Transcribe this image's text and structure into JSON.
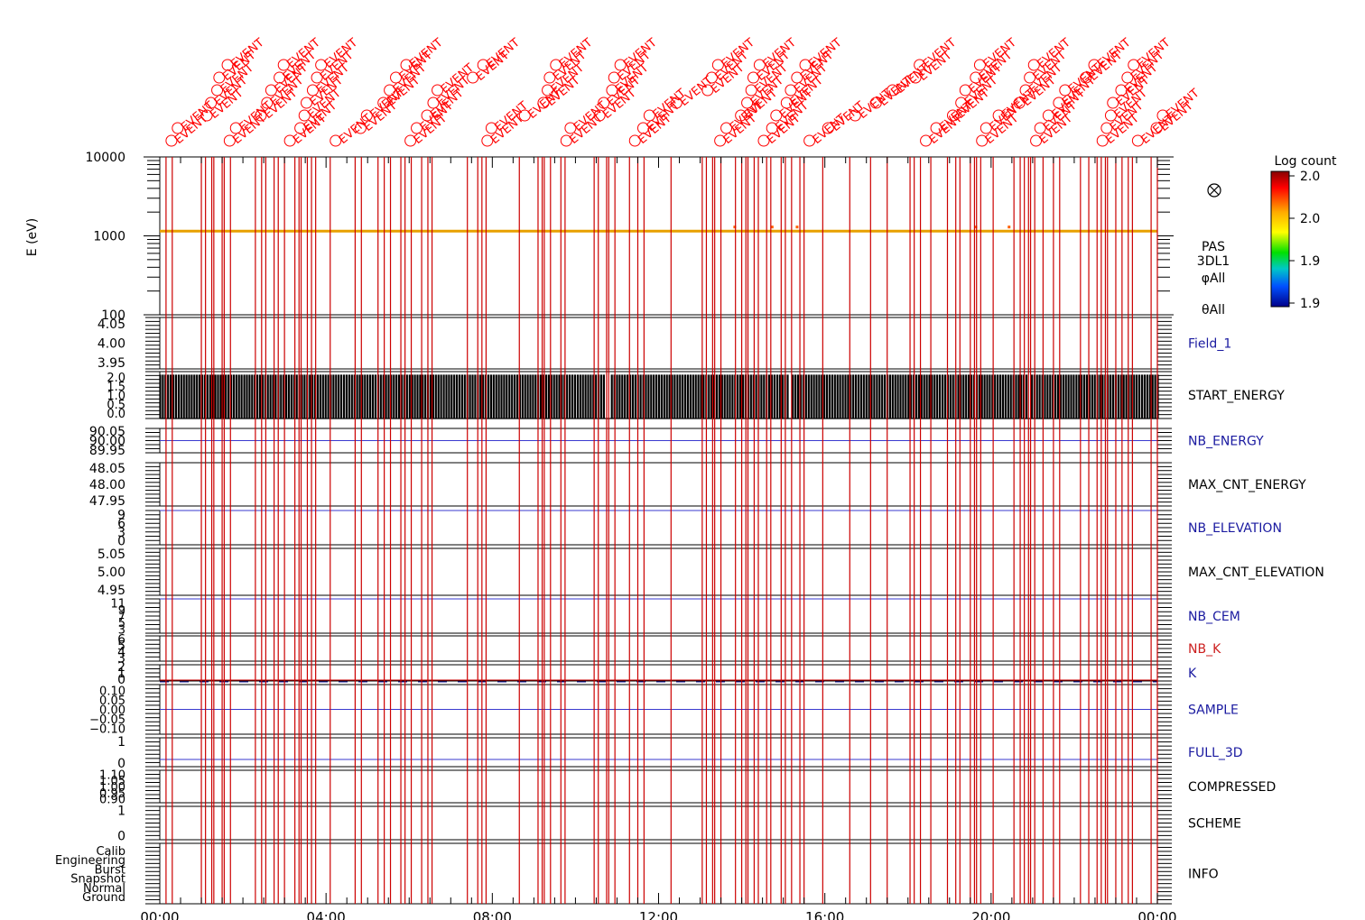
{
  "chart_data": {
    "type": "line",
    "title": "",
    "x_axis": {
      "tick_labels": [
        "00:00",
        "04:00",
        "08:00",
        "12:00",
        "16:00",
        "20:00",
        "00:00"
      ],
      "range_hours": [
        0,
        24
      ]
    },
    "event_annotation": {
      "marker_text": "EVENT",
      "marker_color": "#ff0000",
      "line_color": "#cc0000",
      "event_times_hours": [
        0.15,
        0.3,
        1.0,
        1.1,
        1.25,
        1.3,
        1.5,
        1.55,
        1.7,
        2.3,
        2.45,
        2.55,
        2.75,
        2.85,
        3.0,
        3.25,
        3.35,
        3.4,
        3.55,
        3.65,
        3.75,
        4.1,
        4.7,
        4.85,
        5.25,
        5.4,
        5.55,
        5.8,
        5.9,
        6.05,
        6.3,
        6.45,
        6.55,
        7.4,
        7.65,
        7.75,
        7.85,
        8.65,
        9.1,
        9.2,
        9.25,
        9.4,
        9.65,
        9.75,
        10.45,
        10.55,
        10.75,
        10.8,
        10.95,
        11.3,
        11.5,
        11.65,
        12.3,
        13.05,
        13.15,
        13.3,
        13.35,
        13.5,
        13.85,
        14.0,
        14.1,
        14.15,
        14.3,
        14.4,
        14.6,
        14.7,
        14.95,
        15.05,
        15.2,
        15.4,
        15.5,
        15.95,
        16.6,
        17.1,
        17.5,
        18.05,
        18.15,
        18.3,
        18.55,
        18.95,
        19.15,
        19.25,
        19.5,
        19.6,
        19.65,
        19.75,
        20.05,
        20.55,
        20.7,
        20.8,
        20.9,
        20.95,
        21.05,
        21.25,
        21.5,
        21.65,
        22.15,
        22.35,
        22.55,
        22.65,
        22.75,
        22.8,
        23.0,
        23.15,
        23.3,
        23.4,
        23.85,
        24.0
      ]
    },
    "panels": [
      {
        "name": "spectrogram",
        "type": "heatmap",
        "ylabel": "E (eV)",
        "yscale": "log",
        "ylim": [
          100,
          10000
        ],
        "tick_labels": [
          "10000",
          "1000",
          "100"
        ],
        "right_labels": [
          "PAS",
          "3DL1",
          "φAll",
          "θAll"
        ],
        "band_energy_eV": 1150,
        "colorbar": {
          "title": "Log count",
          "tick_labels": [
            "2.0",
            "2.0",
            "1.9",
            "1.9"
          ]
        }
      },
      {
        "name": "field_1",
        "label": "Field_1",
        "label_color": "#1a1aa0",
        "tick_labels": [
          "4.05",
          "4.00",
          "3.95"
        ],
        "ylim": [
          3.9,
          4.1
        ],
        "line_value": null
      },
      {
        "name": "start_energy",
        "label": "START_ENERGY",
        "label_color": "#000000",
        "tick_labels": [
          "2.0",
          "1.5",
          "1.0",
          "0.5",
          "0.0"
        ],
        "ylim": [
          0,
          2
        ],
        "stairs_low": 0,
        "stairs_high": 2
      },
      {
        "name": "nb_energy",
        "label": "NB_ENERGY",
        "label_color": "#1a1aa0",
        "tick_labels": [
          "90.05",
          "90.00",
          "89.95"
        ],
        "ylim": [
          89.9,
          90.1
        ],
        "line_value": 90.0
      },
      {
        "name": "max_cnt_energy",
        "label": "MAX_CNT_ENERGY",
        "label_color": "#000000",
        "tick_labels": [
          "48.05",
          "48.00",
          "47.95"
        ],
        "ylim": [
          47.9,
          48.1
        ],
        "line_value": null
      },
      {
        "name": "nb_elevation",
        "label": "NB_ELEVATION",
        "label_color": "#1a1aa0",
        "tick_labels": [
          "9",
          "6",
          "3",
          "0"
        ],
        "ylim": [
          0,
          9
        ],
        "line_value": 9
      },
      {
        "name": "max_cnt_elevation",
        "label": "MAX_CNT_ELEVATION",
        "label_color": "#000000",
        "tick_labels": [
          "5.05",
          "5.00",
          "4.95"
        ],
        "ylim": [
          4.9,
          5.1
        ],
        "line_value": null
      },
      {
        "name": "nb_cem",
        "label": "NB_CEM",
        "label_color": "#1a1aa0",
        "tick_labels": [
          "11",
          "9",
          "7",
          "5",
          "3"
        ],
        "ylim": [
          1,
          12
        ],
        "line_value": 12
      },
      {
        "name": "nb_k",
        "label": "NB_K",
        "label_color": "#cc2020",
        "tick_labels": [
          "6",
          "5",
          "4",
          "3"
        ],
        "ylim": [
          2.5,
          6.5
        ],
        "line_value": null
      },
      {
        "name": "k",
        "label": "K",
        "label_color": "#1a1aa0",
        "tick_labels": [
          "2",
          "1",
          "0"
        ],
        "ylim": [
          0,
          2.5
        ],
        "line_value": 0
      },
      {
        "name": "sample",
        "label": "SAMPLE",
        "label_color": "#1a1aa0",
        "tick_labels": [
          "0.10",
          "0.05",
          "0.00",
          "−0.05",
          "−0.10"
        ],
        "ylim": [
          -0.15,
          0.15
        ],
        "line_value": 0
      },
      {
        "name": "full_3d",
        "label": "FULL_3D",
        "label_color": "#1a1aa0",
        "tick_labels": [
          "1",
          "0"
        ],
        "ylim": [
          -0.5,
          1.5
        ],
        "line_value": 0
      },
      {
        "name": "compressed",
        "label": "COMPRESSED",
        "label_color": "#000000",
        "tick_labels": [
          "1.10",
          "1.05",
          "1.00",
          "0.95",
          "0.90"
        ],
        "ylim": [
          0.85,
          1.15
        ],
        "line_value": null
      },
      {
        "name": "scheme",
        "label": "SCHEME",
        "label_color": "#000000",
        "tick_labels": [
          "1",
          "0"
        ],
        "ylim": [
          -0.5,
          1.5
        ],
        "line_value": null
      },
      {
        "name": "info",
        "label": "INFO",
        "label_color": "#000000",
        "tick_labels": [
          "Calib",
          "Engineering",
          "Burst",
          "Snapshot",
          "Normal",
          "Ground"
        ],
        "ylim": [
          0,
          6
        ],
        "line_value": null
      }
    ],
    "series_colors": {
      "spectrogram_band": "#e8a000",
      "k_dashed": "#1a1aa0",
      "k_solid": "#cc0000"
    }
  }
}
